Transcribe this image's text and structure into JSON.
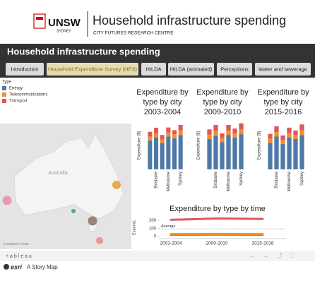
{
  "header": {
    "logo": "UNSW",
    "logo_sub": "SYDNEY",
    "title": "Household infrastructure spending",
    "subtitle": "CITY FUTURES RESEARCH CENTRE"
  },
  "banner": {
    "title": "Household infrastructure spending"
  },
  "tabs": [
    {
      "label": "Introduction",
      "active": false
    },
    {
      "label": "Household Expenditure Survey (HES)",
      "active": true
    },
    {
      "label": "HILDA",
      "active": false
    },
    {
      "label": "HILDA (animated)",
      "active": false
    },
    {
      "label": "Perceptions",
      "active": false
    },
    {
      "label": "Water and sewerage",
      "active": false
    }
  ],
  "legend": {
    "title": "Type",
    "items": [
      {
        "name": "Energy",
        "color": "#4e79a7"
      },
      {
        "name": "Telecommunications",
        "color": "#f28e2b"
      },
      {
        "name": "Transport",
        "color": "#e15759"
      }
    ]
  },
  "map": {
    "label": "Australia",
    "attribution": "© Mapbox © OSM"
  },
  "charts": [
    {
      "type": "bar",
      "stacked": true,
      "title": [
        "Expenditure by",
        "type by city",
        "2003-2004"
      ],
      "y_label": "Expenditure ($)",
      "categories": [
        null,
        "Brisbane",
        null,
        "Melbourne",
        null,
        "Sydney"
      ],
      "ylim": [
        0,
        300
      ],
      "series": [
        {
          "values": [
            180,
            200,
            165,
            205,
            195,
            215
          ]
        },
        {
          "values": [
            25,
            25,
            22,
            25,
            25,
            28
          ]
        },
        {
          "values": [
            30,
            35,
            28,
            32,
            25,
            35
          ]
        }
      ]
    },
    {
      "type": "bar",
      "stacked": true,
      "title": [
        "Expenditure by",
        "type by city",
        "2009-2010"
      ],
      "y_label": "Expenditure ($)",
      "categories": [
        null,
        "Brisbane",
        null,
        "Melbourne",
        null,
        "Sydney"
      ],
      "ylim": [
        0,
        300
      ],
      "series": [
        {
          "values": [
            190,
            210,
            170,
            215,
            200,
            220
          ]
        },
        {
          "values": [
            28,
            30,
            25,
            28,
            27,
            30
          ]
        },
        {
          "values": [
            32,
            38,
            30,
            35,
            28,
            38
          ]
        }
      ]
    },
    {
      "type": "bar",
      "stacked": true,
      "title": [
        "Expenditure by",
        "type by city",
        "2015-2016"
      ],
      "y_label": "Expenditure ($)",
      "categories": [
        null,
        "Brisbane",
        null,
        "Melbourne",
        null,
        "Sydney"
      ],
      "ylim": [
        0,
        300
      ],
      "series": [
        {
          "values": [
            165,
            205,
            160,
            200,
            190,
            215
          ]
        },
        {
          "values": [
            27,
            28,
            24,
            27,
            26,
            30
          ]
        },
        {
          "values": [
            30,
            36,
            28,
            34,
            27,
            36
          ]
        }
      ]
    },
    {
      "type": "line",
      "title": "Expenditure by type by time",
      "y_label": "Expendi..",
      "x": [
        "2003-2004",
        "2009-2010",
        "2015-2016"
      ],
      "ylim": [
        0,
        240
      ],
      "yticks": [
        0,
        100,
        200
      ],
      "annotation": {
        "label": "Average",
        "value": 95
      },
      "series": [
        {
          "values": [
            22,
            24,
            22
          ]
        },
        {
          "values": [
            30,
            32,
            30
          ]
        },
        {
          "values": [
            210,
            225,
            220
          ]
        }
      ]
    }
  ],
  "footer": {
    "brand": "+ a b l e a u",
    "esri": "esri",
    "story": "A Story Map"
  }
}
